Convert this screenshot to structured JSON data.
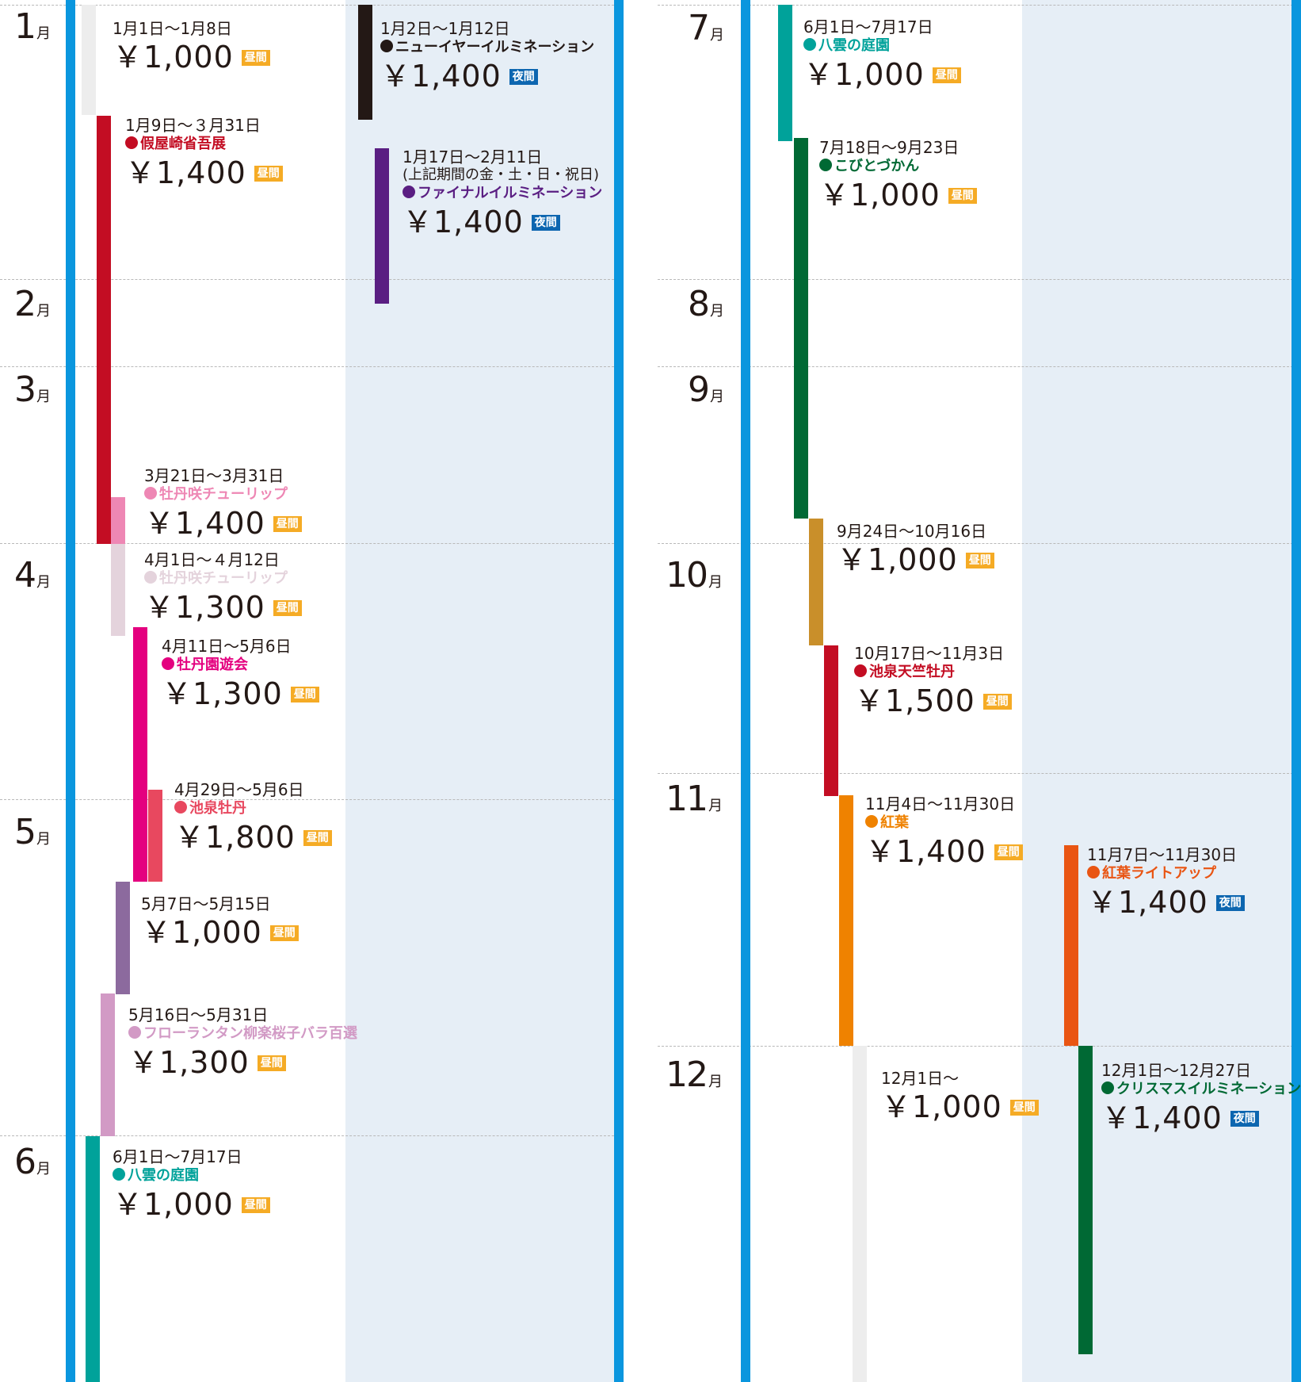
{
  "colors": {
    "axis": "#0a96de",
    "night_background": "#e6eef6",
    "day_badge": "#f5ab25",
    "night_badge": "#0d66b0"
  },
  "months": [
    "1",
    "2",
    "3",
    "4",
    "5",
    "6",
    "7",
    "8",
    "9",
    "10",
    "11",
    "12"
  ],
  "month_unit": "月",
  "badges": {
    "day": "昼間",
    "night": "夜間"
  },
  "events": [
    {
      "id": "e01",
      "date": "1月1日～1月8日",
      "name": "",
      "price": "￥1,000",
      "badge": "昼間",
      "color": "#ededed"
    },
    {
      "id": "e02",
      "date": "1月2日～1月12日",
      "name": "ニューイヤーイルミネーション",
      "price": "￥1,400",
      "badge": "夜間",
      "color": "#231815"
    },
    {
      "id": "e03",
      "date": "1月9日～３月31日",
      "name": "假屋崎省吾展",
      "price": "￥1,400",
      "badge": "昼間",
      "color": "#c30d23"
    },
    {
      "id": "e04",
      "date": "1月17日～2月11日",
      "note": "(上記期間の金・土・日・祝日)",
      "name": "ファイナルイルミネーション",
      "price": "￥1,400",
      "badge": "夜間",
      "color": "#5a1e82"
    },
    {
      "id": "e05",
      "date": "3月21日～3月31日",
      "name": "牡丹咲チューリップ",
      "price": "￥1,400",
      "badge": "昼間",
      "color": "#ee87b4"
    },
    {
      "id": "e06",
      "date": "4月1日～４月12日",
      "name": "牡丹咲チューリップ",
      "price": "￥1,300",
      "badge": "昼間",
      "color": "#e4d3dc"
    },
    {
      "id": "e07",
      "date": "4月11日～5月6日",
      "name": "牡丹園遊会",
      "price": "￥1,300",
      "badge": "昼間",
      "color": "#e4007f"
    },
    {
      "id": "e08",
      "date": "4月29日～5月6日",
      "name": "池泉牡丹",
      "price": "￥1,800",
      "badge": "昼間",
      "color": "#e8485f"
    },
    {
      "id": "e09",
      "date": "5月7日～5月15日",
      "name": "",
      "price": "￥1,000",
      "badge": "昼間",
      "color": "#8c6a9e"
    },
    {
      "id": "e10",
      "date": "5月16日～5月31日",
      "name": "フローランタン柳楽桜子バラ百選",
      "price": "￥1,300",
      "badge": "昼間",
      "color": "#d29ac5"
    },
    {
      "id": "e11",
      "date": "6月1日～7月17日",
      "name": "八雲の庭園",
      "price": "￥1,000",
      "badge": "昼間",
      "color": "#00a29a"
    },
    {
      "id": "e12",
      "date": "6月1日～7月17日",
      "name": "八雲の庭園",
      "price": "￥1,000",
      "badge": "昼間",
      "color": "#00a29a"
    },
    {
      "id": "e13",
      "date": "7月18日～9月23日",
      "name": "こびとづかん",
      "price": "￥1,000",
      "badge": "昼間",
      "color": "#006934"
    },
    {
      "id": "e14",
      "date": "9月24日～10月16日",
      "name": "",
      "price": "￥1,000",
      "badge": "昼間",
      "color": "#c98f2a"
    },
    {
      "id": "e15",
      "date": "10月17日～11月3日",
      "name": "池泉天竺牡丹",
      "price": "￥1,500",
      "badge": "昼間",
      "color": "#c30d23"
    },
    {
      "id": "e16",
      "date": "11月4日～11月30日",
      "name": "紅葉",
      "price": "￥1,400",
      "badge": "昼間",
      "color": "#ef8200"
    },
    {
      "id": "e17",
      "date": "11月7日～11月30日",
      "name": "紅葉ライトアップ",
      "price": "￥1,400",
      "badge": "夜間",
      "color": "#e95513"
    },
    {
      "id": "e18",
      "date": "12月1日～",
      "name": "",
      "price": "￥1,000",
      "badge": "昼間",
      "color": "#ededed"
    },
    {
      "id": "e19",
      "date": "12月1日～12月27日",
      "name": "クリスマスイルミネーション",
      "price": "￥1,400",
      "badge": "夜間",
      "color": "#006934"
    }
  ]
}
